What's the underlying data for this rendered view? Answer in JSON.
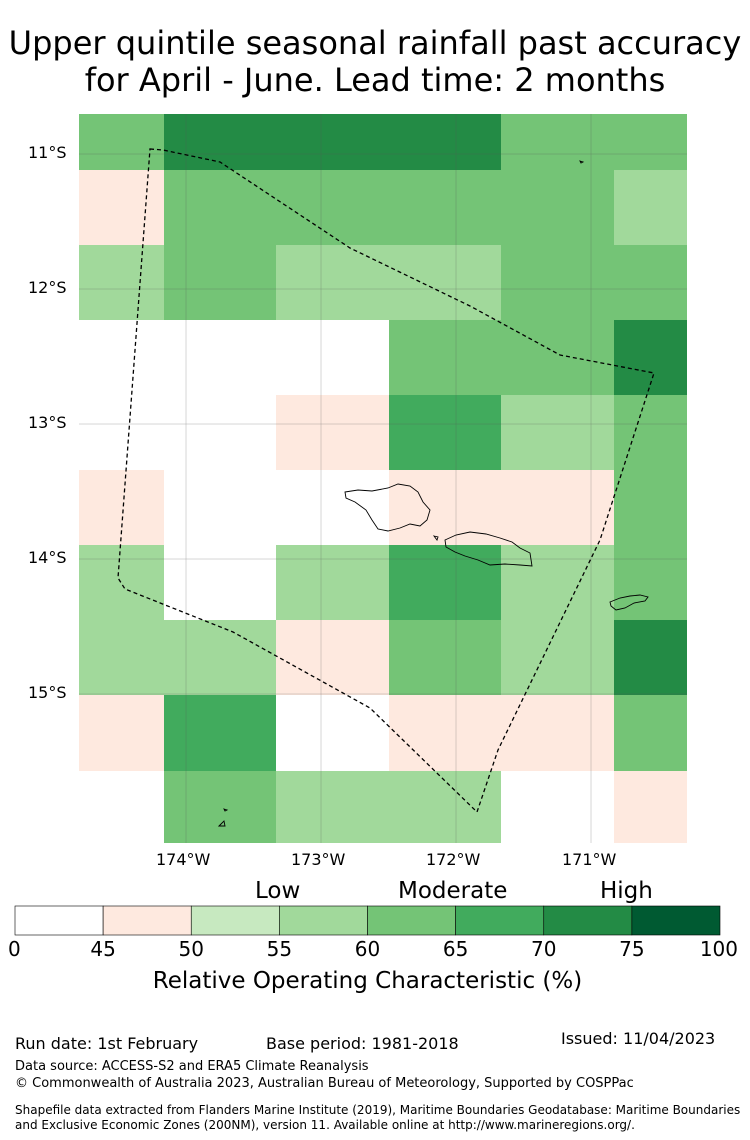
{
  "title_line1": "Upper quintile seasonal rainfall past accuracy",
  "title_line2": "for April - June. Lead time: 2 months",
  "map": {
    "lat_labels": [
      "11°S",
      "12°S",
      "13°S",
      "14°S",
      "15°S"
    ],
    "lon_labels": [
      "174°W",
      "173°W",
      "172°W",
      "171°W"
    ],
    "grid_rows": [
      [
        "60-65",
        "70-75",
        "70-75",
        "70-75",
        "60-65",
        "60-65"
      ],
      [
        "45-50",
        "60-65",
        "60-65",
        "60-65",
        "60-65",
        "55-60"
      ],
      [
        "55-60",
        "60-65",
        "55-60",
        "55-60",
        "60-65",
        "60-65"
      ],
      [
        null,
        null,
        null,
        "60-65",
        "60-65",
        "70-75"
      ],
      [
        null,
        null,
        "45-50",
        "65-70",
        "55-60",
        "60-65"
      ],
      [
        "45-50",
        null,
        null,
        "45-50",
        "45-50",
        "60-65"
      ],
      [
        "55-60",
        null,
        "55-60",
        "65-70",
        "55-60",
        "60-65"
      ],
      [
        "55-60",
        "55-60",
        "45-50",
        "60-65",
        "55-60",
        "70-75"
      ],
      [
        "45-50",
        "65-70",
        null,
        "45-50",
        "45-50",
        "60-65"
      ],
      [
        null,
        "60-65",
        "55-60",
        "55-60",
        null,
        "45-50"
      ]
    ]
  },
  "legend": {
    "category_labels": [
      "Low",
      "Moderate",
      "High"
    ],
    "bins": [
      {
        "range": "0-45",
        "color": "#ffffff"
      },
      {
        "range": "45-50",
        "color": "#fee9df"
      },
      {
        "range": "50-55",
        "color": "#c7e9c0"
      },
      {
        "range": "55-60",
        "color": "#a1d99b"
      },
      {
        "range": "60-65",
        "color": "#74c476"
      },
      {
        "range": "65-70",
        "color": "#41ab5d"
      },
      {
        "range": "70-75",
        "color": "#238b45"
      },
      {
        "range": "75-100",
        "color": "#005a32"
      }
    ],
    "tick_labels": [
      "0",
      "45",
      "50",
      "55",
      "60",
      "65",
      "70",
      "75",
      "100"
    ],
    "axis_label": "Relative Operating Characteristic (%)"
  },
  "footer": {
    "run_date": "Run date: 1st February",
    "base_period": "Base period: 1981-2018",
    "issued": "Issued: 11/04/2023",
    "data_source": "Data source: ACCESS-S2 and ERA5 Climate Reanalysis",
    "copyright": "© Commonwealth of Australia 2023, Australian Bureau of Meteorology, Supported by COSPPac",
    "shapefile_line1": "Shapefile data extracted from Flanders Marine Institute (2019), Maritime Boundaries Geodatabase: Maritime Boundaries",
    "shapefile_line2": "and Exclusive Economic Zones (200NM), version 11. Available online at http://www.marineregions.org/."
  }
}
